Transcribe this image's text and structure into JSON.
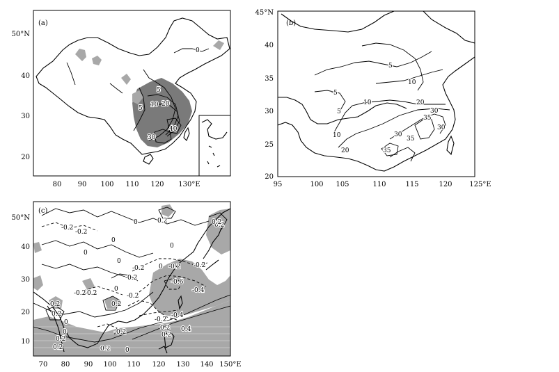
{
  "panels": [
    {
      "id": "a",
      "label": "(a)",
      "x_ticks": [
        "80",
        "90",
        "100",
        "110",
        "120",
        "130°E"
      ],
      "y_ticks": [
        "20",
        "30",
        "40",
        "50°N"
      ],
      "contour_labels": [
        "0",
        "5",
        "5",
        "10",
        "20",
        "30",
        "40"
      ]
    },
    {
      "id": "b",
      "label": "(b)",
      "x_ticks": [
        "95",
        "100",
        "105",
        "110",
        "115",
        "120",
        "125°E"
      ],
      "y_ticks": [
        "20",
        "25",
        "30",
        "35",
        "40",
        "45°N"
      ],
      "contour_labels": [
        "5",
        "10",
        "-5",
        "5",
        "10",
        "20",
        "30",
        "35",
        "30",
        "35",
        "30",
        "20",
        "35",
        "10"
      ]
    },
    {
      "id": "c",
      "label": "(c)",
      "x_ticks": [
        "70",
        "80",
        "90",
        "100",
        "110",
        "120",
        "130",
        "140",
        "150°E"
      ],
      "y_ticks": [
        "10",
        "20",
        "30",
        "40",
        "50°N"
      ],
      "contour_labels": [
        "-0.2",
        "-0.2",
        "0",
        "0.2",
        "0.2",
        "0",
        "0",
        "0",
        "0",
        "-0.2",
        "-0.2",
        "0",
        "-0.2",
        "-0.2",
        "-0.6",
        "-0.4",
        "-0.2",
        "0.2",
        "0",
        "0.2",
        "-0.2",
        "-0.2",
        "0.2",
        "0",
        "-0.2",
        "-0.4",
        "-0.2",
        "0.2",
        "0.4",
        "0.2",
        "0",
        "0.2",
        "0.2",
        "0",
        "0.2",
        "0.2"
      ]
    }
  ]
}
